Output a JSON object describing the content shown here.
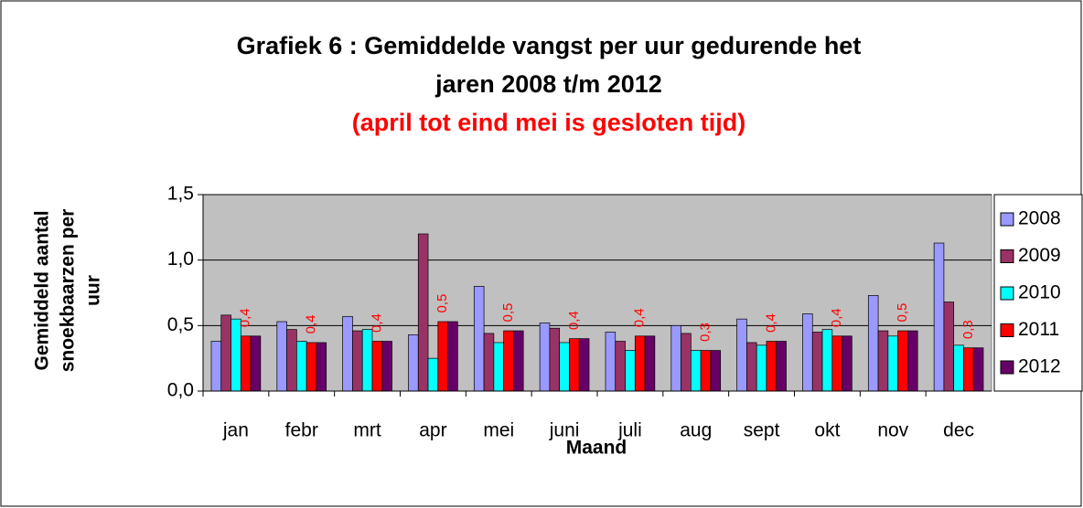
{
  "chart_data": {
    "type": "bar",
    "title": [
      "Grafiek 6 : Gemiddelde vangst per uur gedurende het",
      "jaren 2008 t/m 2012"
    ],
    "subtitle": "(april tot eind mei is gesloten tijd)",
    "x_label": "Maand",
    "y_label": [
      "Gemiddeld aantal",
      "snoekbaarzen per",
      "uur"
    ],
    "categories": [
      "jan",
      "febr",
      "mrt",
      "apr",
      "mei",
      "juni",
      "juli",
      "aug",
      "sept",
      "okt",
      "nov",
      "dec"
    ],
    "series": [
      {
        "name": "2008",
        "color": "#9999ff",
        "values": [
          0.38,
          0.53,
          0.57,
          0.43,
          0.8,
          0.52,
          0.45,
          0.5,
          0.55,
          0.59,
          0.73,
          1.13
        ]
      },
      {
        "name": "2009",
        "color": "#993366",
        "values": [
          0.58,
          0.47,
          0.46,
          1.2,
          0.44,
          0.48,
          0.38,
          0.44,
          0.37,
          0.45,
          0.46,
          0.68
        ]
      },
      {
        "name": "2010",
        "color": "#00ffff",
        "values": [
          0.55,
          0.38,
          0.47,
          0.25,
          0.37,
          0.37,
          0.31,
          0.31,
          0.35,
          0.47,
          0.42,
          0.35
        ]
      },
      {
        "name": "2011",
        "color": "#ff0000",
        "values": [
          0.42,
          0.37,
          0.38,
          0.53,
          0.46,
          0.4,
          0.42,
          0.31,
          0.38,
          0.42,
          0.46,
          0.33
        ],
        "value_labels": [
          "0,4",
          "0,4",
          "0,4",
          "0,5",
          "0,5",
          "0,4",
          "0,4",
          "0,3",
          "0,4",
          "0,4",
          "0,5",
          "0,3"
        ]
      },
      {
        "name": "2012",
        "color": "#660066",
        "values": [
          0.42,
          0.37,
          0.38,
          0.53,
          0.46,
          0.4,
          0.42,
          0.31,
          0.38,
          0.42,
          0.46,
          0.33
        ]
      }
    ],
    "ylim": [
      0,
      1.5
    ],
    "yticks": [
      {
        "value": 0,
        "label": "0,0"
      },
      {
        "value": 0.5,
        "label": "0,5"
      },
      {
        "value": 1.0,
        "label": "1,0"
      },
      {
        "value": 1.5,
        "label": "1,5"
      }
    ],
    "grid": true
  }
}
